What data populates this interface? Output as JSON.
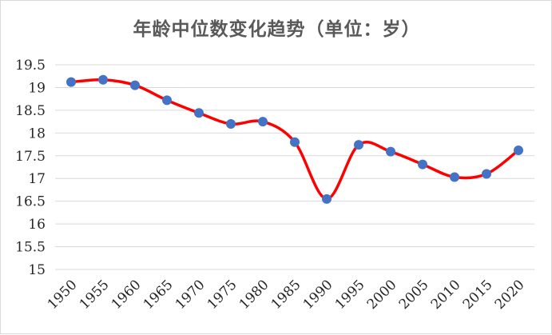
{
  "chart_data": {
    "type": "line",
    "title": "年龄中位数变化趋势（单位：岁）",
    "xlabel": "",
    "ylabel": "",
    "x": [
      "1950",
      "1955",
      "1960",
      "1965",
      "1970",
      "1975",
      "1980",
      "1985",
      "1990",
      "1995",
      "2000",
      "2005",
      "2010",
      "2015",
      "2020"
    ],
    "series": [
      {
        "values": [
          19.12,
          19.17,
          19.05,
          18.72,
          18.44,
          18.2,
          18.25,
          17.8,
          16.55,
          17.74,
          17.59,
          17.31,
          17.03,
          17.1,
          17.62
        ],
        "line_color": "#ff0000",
        "marker_color": "#4472c4",
        "smooth": true
      }
    ],
    "ylim": [
      15,
      19.5
    ],
    "yticks": [
      "15",
      "15.5",
      "16",
      "16.5",
      "17",
      "17.5",
      "18",
      "18.5",
      "19",
      "19.5"
    ],
    "grid": true,
    "legend": "none"
  }
}
